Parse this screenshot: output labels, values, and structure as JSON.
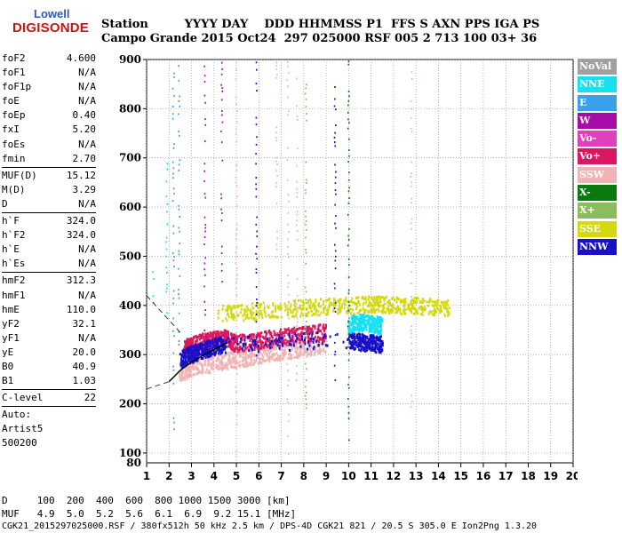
{
  "logo": {
    "line1": "Lowell",
    "line2": "DIGISONDE"
  },
  "header": {
    "row1": "Station         YYYY DAY    DDD HHMMSS P1  FFS S AXN PPS IGA PS",
    "row2": "Campo Grande 2015 Oct24  297 025000 RSF 005 2 713 100 03+ 36"
  },
  "params": [
    {
      "label": "foF2",
      "value": "4.600"
    },
    {
      "label": "foF1",
      "value": "N/A"
    },
    {
      "label": "foF1p",
      "value": "N/A"
    },
    {
      "label": "foE",
      "value": "N/A"
    },
    {
      "label": "foEp",
      "value": "0.40"
    },
    {
      "label": "fxI",
      "value": "5.20"
    },
    {
      "label": "foEs",
      "value": "N/A"
    },
    {
      "label": "fmin",
      "value": "2.70"
    },
    {
      "sep": true
    },
    {
      "label": "MUF(D)",
      "value": "15.12"
    },
    {
      "label": "M(D)",
      "value": "3.29"
    },
    {
      "label": "D",
      "value": "N/A"
    },
    {
      "sep": true
    },
    {
      "label": "h`F",
      "value": "324.0"
    },
    {
      "label": "h`F2",
      "value": "324.0"
    },
    {
      "label": "h`E",
      "value": "N/A"
    },
    {
      "label": "h`Es",
      "value": "N/A"
    },
    {
      "sep": true
    },
    {
      "label": "hmF2",
      "value": "312.3"
    },
    {
      "label": "hmF1",
      "value": "N/A"
    },
    {
      "label": "hmE",
      "value": "110.0"
    },
    {
      "label": "yF2",
      "value": "32.1"
    },
    {
      "label": "yF1",
      "value": "N/A"
    },
    {
      "label": "yE",
      "value": "20.0"
    },
    {
      "label": "B0",
      "value": "40.9"
    },
    {
      "label": "B1",
      "value": "1.03"
    },
    {
      "sep": true
    },
    {
      "label": "C-level",
      "value": "22"
    },
    {
      "sep": true
    },
    {
      "label": "Auto:",
      "value": ""
    },
    {
      "label": "Artist5",
      "value": ""
    },
    {
      "label": "500200",
      "value": ""
    }
  ],
  "legend": [
    {
      "label": "NoVal",
      "bg": "#a0a0a0",
      "fg": "#ffffff"
    },
    {
      "label": "NNE",
      "bg": "#18e0f0",
      "fg": "#ffffff"
    },
    {
      "label": "E",
      "bg": "#3aa0e8",
      "fg": "#ffffff"
    },
    {
      "label": "W",
      "bg": "#a80ca8",
      "fg": "#ffffff"
    },
    {
      "label": "Vo-",
      "bg": "#e040b8",
      "fg": "#ffffff"
    },
    {
      "label": "Vo+",
      "bg": "#d81860",
      "fg": "#ffffff"
    },
    {
      "label": "SSW",
      "bg": "#f0b4b4",
      "fg": "#ffffff"
    },
    {
      "label": "X-",
      "bg": "#0a7a10",
      "fg": "#ffffff"
    },
    {
      "label": "X+",
      "bg": "#8cbc5c",
      "fg": "#ffffff"
    },
    {
      "label": "SSE",
      "bg": "#d4d80c",
      "fg": "#ffffff"
    },
    {
      "label": "NNW",
      "bg": "#1810c8",
      "fg": "#ffffff"
    }
  ],
  "chart_data": {
    "type": "scatter",
    "title": "",
    "xlabel": "",
    "ylabel": "",
    "xlim": [
      1,
      20
    ],
    "ylim": [
      80,
      900
    ],
    "x_ticks": [
      1,
      2,
      3,
      4,
      5,
      6,
      7,
      8,
      9,
      10,
      11,
      12,
      13,
      14,
      15,
      16,
      17,
      18,
      19,
      20
    ],
    "y_ticks": [
      100,
      200,
      300,
      400,
      500,
      600,
      700,
      800,
      900
    ],
    "y_tick_labels": [
      "100",
      "200",
      "300",
      "400",
      "500",
      "600",
      "700",
      "800",
      "900"
    ],
    "y_axis_bottom_label": "80",
    "grid": true,
    "traces": [
      {
        "name": "SSE",
        "x": [
          4.2,
          6.0,
          8.0,
          9.5,
          11.0,
          12.0,
          13.2,
          14.5
        ],
        "y": [
          382,
          388,
          395,
          398,
          402,
          400,
          398,
          395
        ]
      },
      {
        "name": "SSW",
        "x": [
          2.5,
          3.0,
          4.0,
          5.0,
          6.0,
          7.0,
          8.0,
          9.0
        ],
        "y": [
          262,
          272,
          282,
          290,
          298,
          305,
          312,
          320
        ]
      },
      {
        "name": "Vo+",
        "x": [
          2.7,
          3.0,
          3.5,
          4.0,
          4.5,
          5.0,
          6.0,
          7.0,
          8.0,
          9.0
        ],
        "y": [
          312,
          318,
          325,
          330,
          332,
          322,
          328,
          335,
          340,
          345
        ]
      },
      {
        "name": "NNW",
        "x": [
          2.5,
          3.0,
          3.5,
          4.0,
          4.5,
          10.0,
          10.5,
          11.0,
          11.5
        ],
        "y": [
          290,
          300,
          308,
          315,
          320,
          330,
          325,
          322,
          320
        ]
      },
      {
        "name": "NNE",
        "x": [
          10.0,
          10.5,
          11.0,
          11.5
        ],
        "y": [
          360,
          365,
          362,
          358
        ]
      }
    ],
    "profile_curve": {
      "x": [
        2.0,
        2.5,
        3.0,
        3.5,
        4.0,
        4.6
      ],
      "y": [
        245,
        268,
        285,
        298,
        310,
        324
      ]
    },
    "profile_extensions": [
      {
        "x": [
          1.0,
          2.0
        ],
        "y": [
          230,
          245
        ]
      },
      {
        "x": [
          1.0,
          2.6
        ],
        "y": [
          420,
          340
        ]
      }
    ]
  },
  "bottom": {
    "row1": "D     100  200  400  600  800 1000 1500 3000 [km]",
    "row2": "MUF   4.9  5.0  5.2  5.6  6.1  6.9  9.2 15.1 [MHz]",
    "row3": "CGK21_2015297025000.RSF / 380fx512h 50 kHz 2.5 km / DPS-4D CGK21 821 / 20.5 S 305.0 E Ion2Png 1.3.20"
  }
}
